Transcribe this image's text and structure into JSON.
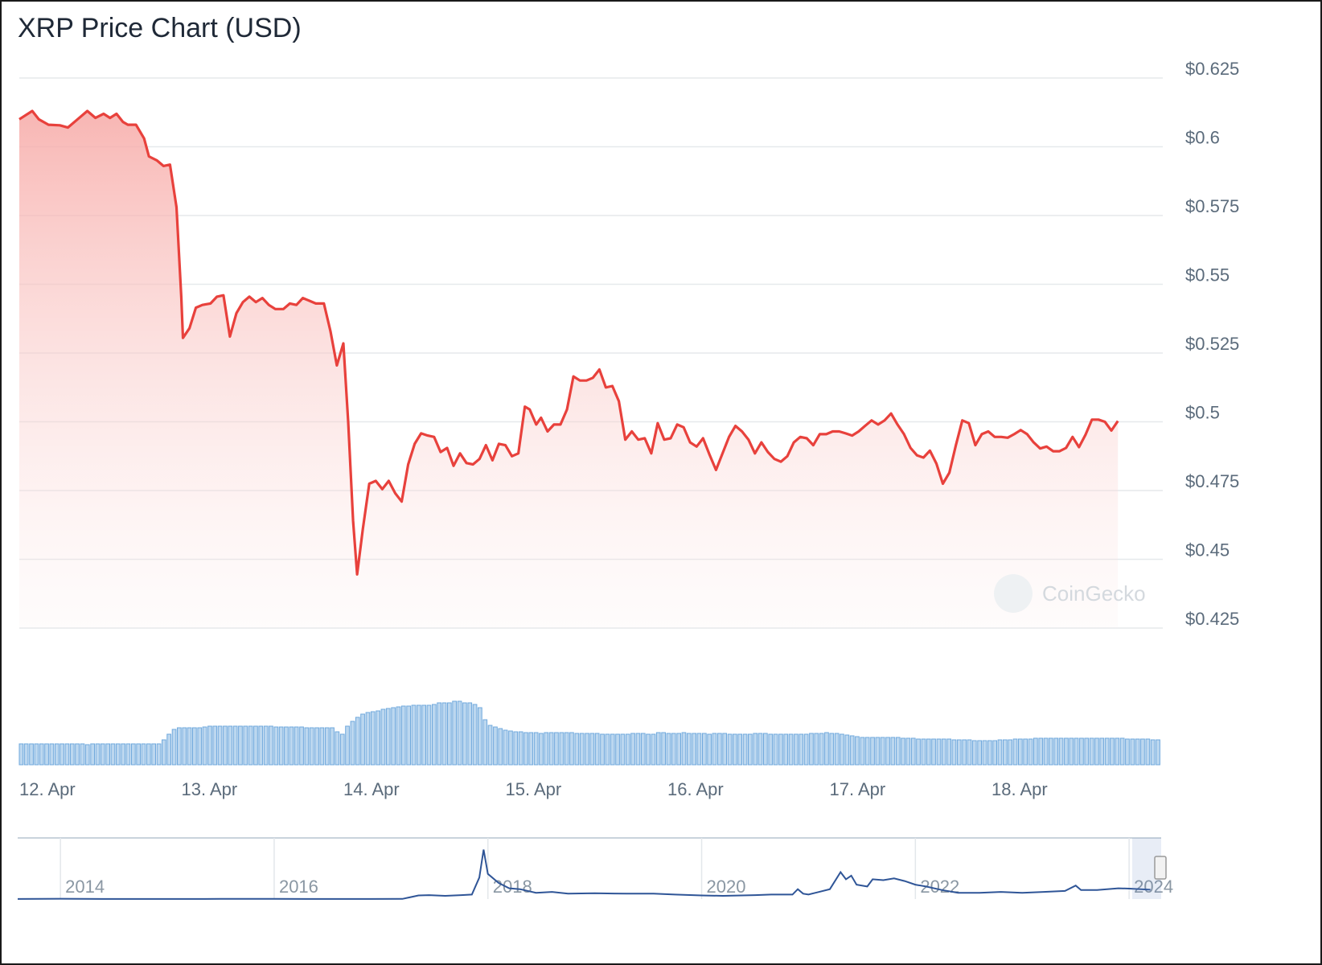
{
  "chart_data": {
    "type": "area",
    "title": "XRP Price Chart (USD)",
    "xlabel": "",
    "ylabel": "",
    "currency": "USD",
    "ylim": [
      0.425,
      0.635
    ],
    "y_ticks": [
      0.425,
      0.45,
      0.475,
      0.5,
      0.525,
      0.55,
      0.575,
      0.6,
      0.625
    ],
    "y_tick_labels": [
      "$0.425",
      "$0.45",
      "$0.475",
      "$0.5",
      "$0.525",
      "$0.55",
      "$0.575",
      "$0.6",
      "$0.625"
    ],
    "x_range_days": [
      0,
      7.05
    ],
    "x_ticks": [
      0,
      1,
      2,
      3,
      4,
      5,
      6
    ],
    "x_tick_labels": [
      "12. Apr",
      "13. Apr",
      "14. Apr",
      "15. Apr",
      "16. Apr",
      "17. Apr",
      "18. Apr"
    ],
    "grid": true,
    "line_color": "#e8413c",
    "fill_color": "#f4a6a3",
    "series": [
      {
        "points": [
          [
            0.0,
            0.61
          ],
          [
            0.08,
            0.613
          ],
          [
            0.12,
            0.61
          ],
          [
            0.18,
            0.608
          ],
          [
            0.25,
            0.6078
          ],
          [
            0.3,
            0.607
          ],
          [
            0.36,
            0.61
          ],
          [
            0.42,
            0.613
          ],
          [
            0.47,
            0.6105
          ],
          [
            0.52,
            0.612
          ],
          [
            0.56,
            0.6105
          ],
          [
            0.6,
            0.612
          ],
          [
            0.64,
            0.609
          ],
          [
            0.67,
            0.608
          ],
          [
            0.72,
            0.608
          ],
          [
            0.77,
            0.603
          ],
          [
            0.8,
            0.5965
          ],
          [
            0.85,
            0.595
          ],
          [
            0.89,
            0.593
          ],
          [
            0.93,
            0.5935
          ],
          [
            0.97,
            0.578
          ],
          [
            1.0,
            0.545
          ],
          [
            1.01,
            0.5305
          ],
          [
            1.05,
            0.534
          ],
          [
            1.09,
            0.5415
          ],
          [
            1.13,
            0.5425
          ],
          [
            1.18,
            0.543
          ],
          [
            1.22,
            0.5455
          ],
          [
            1.26,
            0.546
          ],
          [
            1.3,
            0.531
          ],
          [
            1.34,
            0.5395
          ],
          [
            1.38,
            0.5435
          ],
          [
            1.42,
            0.5455
          ],
          [
            1.46,
            0.5435
          ],
          [
            1.5,
            0.545
          ],
          [
            1.54,
            0.5425
          ],
          [
            1.58,
            0.541
          ],
          [
            1.63,
            0.541
          ],
          [
            1.67,
            0.543
          ],
          [
            1.71,
            0.5425
          ],
          [
            1.75,
            0.545
          ],
          [
            1.79,
            0.544
          ],
          [
            1.83,
            0.543
          ],
          [
            1.88,
            0.543
          ],
          [
            1.92,
            0.533
          ],
          [
            1.96,
            0.5205
          ],
          [
            2.0,
            0.5285
          ],
          [
            2.03,
            0.5
          ],
          [
            2.06,
            0.464
          ],
          [
            2.085,
            0.4445
          ],
          [
            2.12,
            0.461
          ],
          [
            2.16,
            0.4775
          ],
          [
            2.2,
            0.4785
          ],
          [
            2.24,
            0.4755
          ],
          [
            2.28,
            0.4785
          ],
          [
            2.32,
            0.474
          ],
          [
            2.36,
            0.471
          ],
          [
            2.4,
            0.4845
          ],
          [
            2.44,
            0.492
          ],
          [
            2.48,
            0.4958
          ],
          [
            2.52,
            0.495
          ],
          [
            2.56,
            0.4945
          ],
          [
            2.6,
            0.489
          ],
          [
            2.64,
            0.4905
          ],
          [
            2.68,
            0.484
          ],
          [
            2.72,
            0.4885
          ],
          [
            2.76,
            0.485
          ],
          [
            2.8,
            0.4845
          ],
          [
            2.84,
            0.4865
          ],
          [
            2.88,
            0.4915
          ],
          [
            2.92,
            0.486
          ],
          [
            2.96,
            0.492
          ],
          [
            3.0,
            0.4915
          ],
          [
            3.04,
            0.4875
          ],
          [
            3.08,
            0.4885
          ],
          [
            3.12,
            0.5055
          ],
          [
            3.15,
            0.5045
          ],
          [
            3.19,
            0.499
          ],
          [
            3.22,
            0.5015
          ],
          [
            3.26,
            0.4965
          ],
          [
            3.3,
            0.499
          ],
          [
            3.34,
            0.499
          ],
          [
            3.38,
            0.5045
          ],
          [
            3.42,
            0.5165
          ],
          [
            3.46,
            0.515
          ],
          [
            3.5,
            0.515
          ],
          [
            3.54,
            0.516
          ],
          [
            3.58,
            0.519
          ],
          [
            3.62,
            0.5125
          ],
          [
            3.66,
            0.513
          ],
          [
            3.7,
            0.5075
          ],
          [
            3.74,
            0.4935
          ],
          [
            3.78,
            0.4965
          ],
          [
            3.82,
            0.4935
          ],
          [
            3.86,
            0.494
          ],
          [
            3.9,
            0.4885
          ],
          [
            3.94,
            0.4995
          ],
          [
            3.98,
            0.4935
          ],
          [
            4.02,
            0.494
          ],
          [
            4.06,
            0.499
          ],
          [
            4.1,
            0.498
          ],
          [
            4.14,
            0.4925
          ],
          [
            4.18,
            0.491
          ],
          [
            4.22,
            0.494
          ],
          [
            4.26,
            0.488
          ],
          [
            4.3,
            0.4825
          ],
          [
            4.34,
            0.4885
          ],
          [
            4.38,
            0.4945
          ],
          [
            4.42,
            0.4985
          ],
          [
            4.46,
            0.4965
          ],
          [
            4.5,
            0.4935
          ],
          [
            4.54,
            0.4885
          ],
          [
            4.58,
            0.4925
          ],
          [
            4.62,
            0.489
          ],
          [
            4.66,
            0.4865
          ],
          [
            4.7,
            0.4855
          ],
          [
            4.74,
            0.4875
          ],
          [
            4.78,
            0.4925
          ],
          [
            4.82,
            0.4945
          ],
          [
            4.86,
            0.494
          ],
          [
            4.9,
            0.4915
          ],
          [
            4.94,
            0.4955
          ],
          [
            4.98,
            0.4955
          ],
          [
            5.02,
            0.4965
          ],
          [
            5.06,
            0.4965
          ],
          [
            5.1,
            0.4958
          ],
          [
            5.14,
            0.495
          ],
          [
            5.18,
            0.4965
          ],
          [
            5.22,
            0.4985
          ],
          [
            5.26,
            0.5005
          ],
          [
            5.3,
            0.499
          ],
          [
            5.34,
            0.5005
          ],
          [
            5.38,
            0.503
          ],
          [
            5.42,
            0.499
          ],
          [
            5.46,
            0.4955
          ],
          [
            5.5,
            0.4905
          ],
          [
            5.54,
            0.4878
          ],
          [
            5.58,
            0.487
          ],
          [
            5.62,
            0.4895
          ],
          [
            5.66,
            0.4848
          ],
          [
            5.7,
            0.4775
          ],
          [
            5.74,
            0.4815
          ],
          [
            5.78,
            0.4915
          ],
          [
            5.82,
            0.5005
          ],
          [
            5.86,
            0.4995
          ],
          [
            5.9,
            0.4915
          ],
          [
            5.94,
            0.4955
          ],
          [
            5.98,
            0.4965
          ],
          [
            6.02,
            0.4945
          ],
          [
            6.06,
            0.4945
          ],
          [
            6.1,
            0.4942
          ],
          [
            6.14,
            0.4955
          ],
          [
            6.18,
            0.497
          ],
          [
            6.22,
            0.4955
          ],
          [
            6.26,
            0.4925
          ],
          [
            6.3,
            0.4903
          ],
          [
            6.34,
            0.491
          ],
          [
            6.38,
            0.4893
          ],
          [
            6.42,
            0.4893
          ],
          [
            6.46,
            0.4905
          ],
          [
            6.5,
            0.4945
          ],
          [
            6.54,
            0.4908
          ],
          [
            6.58,
            0.4953
          ],
          [
            6.62,
            0.5008
          ],
          [
            6.66,
            0.5008
          ],
          [
            6.7,
            0.5
          ],
          [
            6.74,
            0.4968
          ],
          [
            6.78,
            0.5003
          ]
        ]
      }
    ],
    "volume": {
      "color": "#6fa8dc",
      "values": [
        26,
        26,
        26,
        26,
        26,
        26,
        26,
        26,
        26,
        26,
        26,
        26,
        26,
        25,
        26,
        26,
        26,
        26,
        26,
        26,
        26,
        26,
        26,
        26,
        26,
        26,
        26,
        26,
        31,
        38,
        44,
        46,
        46,
        46,
        46,
        46,
        47,
        48,
        48,
        48,
        48,
        48,
        48,
        48,
        48,
        48,
        48,
        48,
        48,
        48,
        47,
        47,
        47,
        47,
        47,
        47,
        46,
        46,
        46,
        46,
        46,
        46,
        41,
        38,
        48,
        54,
        59,
        63,
        65,
        66,
        67,
        69,
        70,
        71,
        72,
        73,
        73,
        74,
        74,
        74,
        74,
        75,
        77,
        77,
        77,
        79,
        79,
        77,
        77,
        75,
        71,
        56,
        49,
        47,
        45,
        43,
        42,
        41,
        41,
        40,
        40,
        40,
        39,
        40,
        40,
        40,
        40,
        40,
        40,
        39,
        39,
        39,
        39,
        39,
        38,
        38,
        38,
        38,
        38,
        38,
        39,
        39,
        39,
        38,
        38,
        40,
        40,
        39,
        39,
        39,
        40,
        39,
        39,
        39,
        39,
        38,
        39,
        39,
        39,
        38,
        38,
        38,
        38,
        38,
        39,
        39,
        39,
        38,
        38,
        38,
        38,
        38,
        38,
        38,
        38,
        39,
        39,
        39,
        40,
        39,
        39,
        38,
        37,
        36,
        35,
        34,
        34,
        34,
        34,
        34,
        34,
        34,
        34,
        33,
        33,
        33,
        32,
        32,
        32,
        32,
        32,
        32,
        32,
        31,
        31,
        31,
        31,
        30,
        30,
        30,
        30,
        30,
        31,
        31,
        31,
        32,
        32,
        32,
        32,
        33,
        33,
        33,
        33,
        33,
        33,
        33,
        33,
        33,
        33,
        33,
        33,
        33,
        33,
        33,
        33,
        33,
        33,
        32,
        32,
        32,
        32,
        32,
        31,
        31
      ]
    },
    "navigator": {
      "x_tick_labels": [
        "2014",
        "2016",
        "2018",
        "2020",
        "2022",
        "2024"
      ],
      "x_ticks": [
        2014,
        2016,
        2018,
        2020,
        2022,
        2024
      ],
      "xlim": [
        2013.6,
        2024.3
      ],
      "ylim": [
        0,
        3.4
      ],
      "line_color": "#2f5597",
      "points": [
        [
          2013.6,
          0.005
        ],
        [
          2014.0,
          0.02
        ],
        [
          2014.5,
          0.005
        ],
        [
          2015.0,
          0.005
        ],
        [
          2015.5,
          0.008
        ],
        [
          2016.0,
          0.007
        ],
        [
          2016.5,
          0.006
        ],
        [
          2016.9,
          0.006
        ],
        [
          2017.2,
          0.008
        ],
        [
          2017.35,
          0.2
        ],
        [
          2017.45,
          0.22
        ],
        [
          2017.6,
          0.18
        ],
        [
          2017.75,
          0.22
        ],
        [
          2017.85,
          0.25
        ],
        [
          2017.92,
          1.2
        ],
        [
          2017.96,
          2.75
        ],
        [
          2018.0,
          1.4
        ],
        [
          2018.1,
          0.9
        ],
        [
          2018.2,
          0.6
        ],
        [
          2018.3,
          0.55
        ],
        [
          2018.45,
          0.35
        ],
        [
          2018.6,
          0.4
        ],
        [
          2018.75,
          0.3
        ],
        [
          2019.0,
          0.32
        ],
        [
          2019.3,
          0.3
        ],
        [
          2019.55,
          0.3
        ],
        [
          2019.75,
          0.25
        ],
        [
          2020.0,
          0.2
        ],
        [
          2020.2,
          0.18
        ],
        [
          2020.5,
          0.22
        ],
        [
          2020.65,
          0.25
        ],
        [
          2020.85,
          0.25
        ],
        [
          2020.9,
          0.55
        ],
        [
          2020.95,
          0.3
        ],
        [
          2021.0,
          0.25
        ],
        [
          2021.2,
          0.55
        ],
        [
          2021.3,
          1.5
        ],
        [
          2021.35,
          1.1
        ],
        [
          2021.4,
          1.3
        ],
        [
          2021.45,
          0.8
        ],
        [
          2021.55,
          0.7
        ],
        [
          2021.6,
          1.1
        ],
        [
          2021.7,
          1.05
        ],
        [
          2021.8,
          1.15
        ],
        [
          2021.9,
          1.0
        ],
        [
          2022.0,
          0.8
        ],
        [
          2022.1,
          0.7
        ],
        [
          2022.25,
          0.5
        ],
        [
          2022.4,
          0.35
        ],
        [
          2022.6,
          0.35
        ],
        [
          2022.8,
          0.4
        ],
        [
          2023.0,
          0.35
        ],
        [
          2023.2,
          0.4
        ],
        [
          2023.4,
          0.45
        ],
        [
          2023.5,
          0.75
        ],
        [
          2023.55,
          0.5
        ],
        [
          2023.7,
          0.5
        ],
        [
          2023.9,
          0.6
        ],
        [
          2024.0,
          0.58
        ],
        [
          2024.2,
          0.52
        ]
      ]
    },
    "watermark": "CoinGecko"
  }
}
